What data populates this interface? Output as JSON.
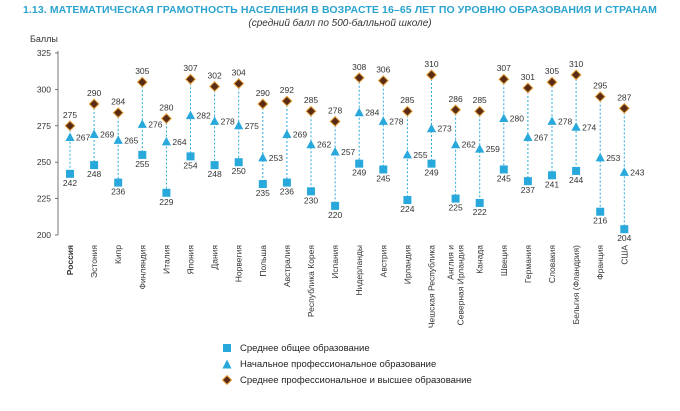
{
  "chart_data": {
    "type": "scatter",
    "title": "1.13. МАТЕМАТИЧЕСКАЯ ГРАМОТНОСТЬ НАСЕЛЕНИЯ В ВОЗРАСТЕ 16–65 ЛЕТ ПО УРОВНЮ ОБРАЗОВАНИЯ И СТРАНАМ",
    "subtitle": "(средний балл по 500-балльной школе)",
    "ylabel": "Баллы",
    "ylim": [
      200,
      325
    ],
    "yticks": [
      200,
      225,
      250,
      275,
      300,
      325
    ],
    "grid": false,
    "legend_position": "bottom",
    "categories": [
      "Россия",
      "Эстония",
      "Кипр",
      "Финляндия",
      "Италия",
      "Япония",
      "Дания",
      "Норвегия",
      "Польша",
      "Австралия",
      "Республика Корея",
      "Испания",
      "Нидерланды",
      "Австрия",
      "Ирландия",
      "Чешская Республика",
      "Англия и Северная Ирландия",
      "Канада",
      "Швеция",
      "Германия",
      "Словакия",
      "Бельгия (Фландрия)",
      "Франция",
      "США"
    ],
    "series": [
      {
        "name": "Среднее общее образование",
        "marker": "square",
        "color": "#29a8dc",
        "values": [
          242,
          248,
          236,
          255,
          229,
          254,
          248,
          250,
          235,
          236,
          230,
          220,
          249,
          245,
          224,
          249,
          225,
          222,
          245,
          237,
          241,
          244,
          216,
          204
        ]
      },
      {
        "name": "Начальное профессиональное образование",
        "marker": "triangle",
        "color": "#29a8dc",
        "values": [
          267,
          269,
          265,
          276,
          264,
          282,
          278,
          275,
          253,
          269,
          262,
          257,
          284,
          278,
          255,
          273,
          262,
          259,
          280,
          267,
          278,
          274,
          253,
          243
        ]
      },
      {
        "name": "Среднее профессиональное и высшее образование",
        "marker": "diamond",
        "color": "#5a2c16",
        "values": [
          275,
          290,
          284,
          305,
          280,
          307,
          302,
          304,
          290,
          292,
          285,
          278,
          308,
          306,
          285,
          310,
          286,
          285,
          307,
          301,
          305,
          310,
          295,
          287
        ]
      }
    ]
  }
}
